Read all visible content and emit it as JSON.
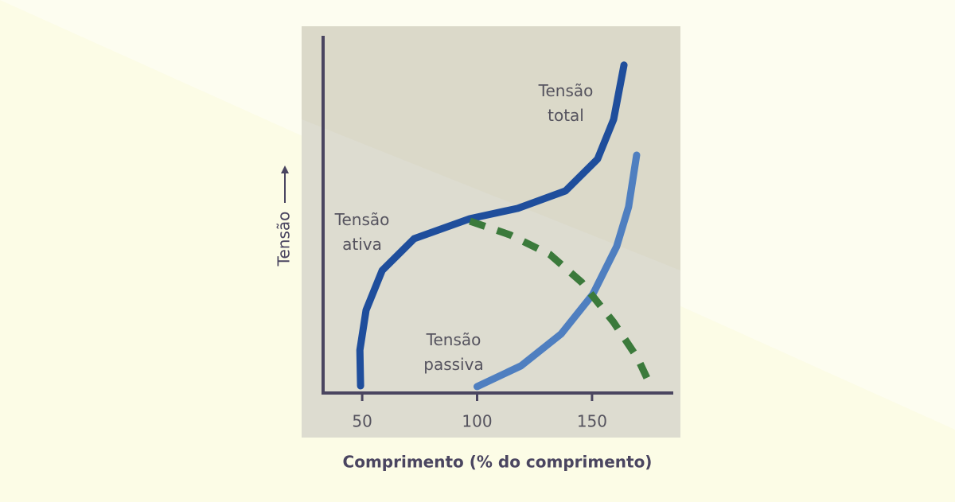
{
  "chart_data": {
    "type": "line",
    "x_label": "Comprimento (% do comprimento)",
    "y_label": "Tensão",
    "xlim": [
      33,
      185
    ],
    "ylim": [
      0,
      100
    ],
    "xticks": [
      50,
      100,
      150
    ],
    "series": [
      {
        "name": "Tensão total",
        "color": "#1f4e9c",
        "style": "solid",
        "x": [
          49.3,
          49,
          51.7,
          58.7,
          72.6,
          96.9,
          117.7,
          138.5,
          152.4,
          159.4,
          163.9
        ],
        "values": [
          2.0,
          12,
          23.2,
          34.3,
          43.2,
          48.8,
          51.7,
          56.6,
          65.5,
          76.6,
          91.8
        ]
      },
      {
        "name": "Tensão passiva",
        "color": "#4f7fc0",
        "style": "solid",
        "x": [
          100,
          119.1,
          136.5,
          150.3,
          160.7,
          165.9,
          169.4
        ],
        "values": [
          1.8,
          7.6,
          16.5,
          27.6,
          41.0,
          52.1,
          66.6
        ]
      },
      {
        "name": "Tensão ativa",
        "color": "#3b7a3b",
        "style": "dashed",
        "x": [
          96.9,
          114.2,
          131.6,
          145.5,
          159.4,
          169.8,
          176.0
        ],
        "values": [
          48.1,
          44.3,
          38.8,
          31.0,
          19.8,
          9.8,
          1.3
        ]
      }
    ]
  }
}
